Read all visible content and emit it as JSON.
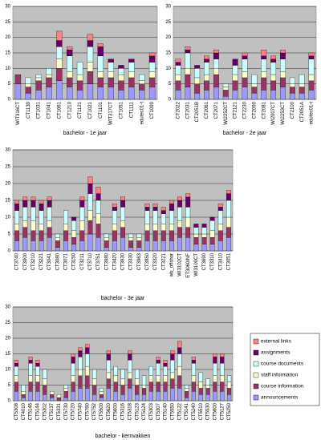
{
  "chart_data": [
    {
      "type": "bar",
      "stacked": true,
      "xlabel": "bachelor - 1e jaar",
      "categories": [
        "WIT316CT",
        "CT1130",
        "CT1031",
        "CT1041",
        "CT1061",
        "CT1210",
        "CT1121",
        "CT1021",
        "CT1101",
        "WIT317CT",
        "CT1051",
        "CT1111",
        "edutec01-t",
        "CT1090"
      ],
      "series": [
        {
          "color": "#9999ff",
          "values": [
            5,
            2,
            3,
            4,
            6,
            4,
            3,
            5,
            4,
            4,
            3,
            4,
            3,
            4
          ]
        },
        {
          "color": "#993366",
          "values": [
            3,
            2,
            3,
            3,
            4,
            3,
            3,
            4,
            3,
            3,
            3,
            3,
            2,
            3
          ]
        },
        {
          "color": "#ffffcc",
          "values": [
            0,
            1,
            1,
            1,
            3,
            2,
            2,
            3,
            2,
            2,
            2,
            2,
            1,
            2
          ]
        },
        {
          "color": "#ccffff",
          "values": [
            0,
            2,
            1,
            2,
            4,
            5,
            4,
            5,
            5,
            3,
            2,
            3,
            2,
            3
          ]
        },
        {
          "color": "#660066",
          "values": [
            0,
            0,
            0,
            0,
            2,
            2,
            0,
            2,
            3,
            1,
            1,
            1,
            0,
            2
          ]
        },
        {
          "color": "#ff8080",
          "values": [
            0,
            0,
            0,
            0,
            3,
            1,
            0,
            2,
            1,
            0,
            0,
            0,
            0,
            1
          ]
        }
      ],
      "ylim": [
        0,
        30
      ],
      "yticks": [
        0,
        5,
        10,
        15,
        20,
        25,
        30
      ],
      "grid": true
    },
    {
      "type": "bar",
      "stacked": true,
      "xlabel": "bachelor - 2e jaar",
      "categories": [
        "CT2022",
        "CT2031",
        "CT2051B",
        "CT2061",
        "CT2071",
        "WI2252CT",
        "CT2121",
        "CT2230",
        "CT2090",
        "CT2081",
        "WI2007CT",
        "WI2253CT",
        "CT2100",
        "CT2051A",
        "edutec01-t"
      ],
      "series": [
        {
          "color": "#9999ff",
          "values": [
            3,
            4,
            2,
            3,
            4,
            1,
            3,
            4,
            2,
            3,
            3,
            4,
            2,
            2,
            3
          ]
        },
        {
          "color": "#993366",
          "values": [
            3,
            4,
            3,
            3,
            4,
            2,
            3,
            3,
            2,
            4,
            3,
            3,
            2,
            2,
            3
          ]
        },
        {
          "color": "#ffffcc",
          "values": [
            2,
            2,
            2,
            2,
            2,
            1,
            2,
            2,
            1,
            2,
            2,
            2,
            1,
            1,
            2
          ]
        },
        {
          "color": "#ccffff",
          "values": [
            3,
            5,
            3,
            4,
            3,
            1,
            3,
            4,
            3,
            4,
            4,
            4,
            2,
            3,
            5
          ]
        },
        {
          "color": "#660066",
          "values": [
            1,
            1,
            1,
            1,
            2,
            0,
            2,
            1,
            0,
            1,
            1,
            2,
            0,
            0,
            1
          ]
        },
        {
          "color": "#ff8080",
          "values": [
            1,
            1,
            0,
            1,
            1,
            0,
            0,
            1,
            0,
            2,
            1,
            1,
            0,
            0,
            1
          ]
        }
      ],
      "ylim": [
        0,
        30
      ],
      "yticks": [
        0,
        5,
        10,
        15,
        20,
        25,
        30
      ],
      "grid": true
    },
    {
      "type": "bar",
      "stacked": true,
      "xlabel": "bachelor - 3e jaar",
      "categories": [
        "CT3740",
        "CT3000",
        "CT3210",
        "CT3221",
        "CT3041",
        "CT3080",
        "CT3071",
        "CT3150",
        "CT3211",
        "CT3710",
        "CT3751",
        "CT3980",
        "CT3420",
        "CT3930",
        "CT3330",
        "CT3963",
        "CT3950",
        "CT3320",
        "CT3221",
        "wb_offshor",
        "WI3102CT",
        "ET3060INF",
        "WI3100CT",
        "CT3690",
        "CT3310",
        "CT3410",
        "CT3051"
      ],
      "series": [
        {
          "color": "#9999ff",
          "values": [
            3,
            4,
            3,
            3,
            4,
            1,
            3,
            2,
            3,
            5,
            4,
            1,
            3,
            4,
            1,
            1,
            3,
            3,
            3,
            3,
            4,
            4,
            2,
            2,
            2,
            3,
            4
          ]
        },
        {
          "color": "#993366",
          "values": [
            3,
            3,
            3,
            3,
            3,
            2,
            3,
            2,
            3,
            4,
            4,
            2,
            3,
            3,
            2,
            2,
            3,
            3,
            3,
            3,
            3,
            3,
            2,
            2,
            2,
            3,
            3
          ]
        },
        {
          "color": "#ffffcc",
          "values": [
            2,
            2,
            3,
            2,
            2,
            1,
            2,
            2,
            3,
            3,
            3,
            1,
            2,
            2,
            1,
            1,
            2,
            2,
            2,
            2,
            2,
            3,
            1,
            1,
            2,
            2,
            3
          ]
        },
        {
          "color": "#ccffff",
          "values": [
            4,
            4,
            4,
            4,
            4,
            1,
            4,
            3,
            4,
            5,
            4,
            1,
            4,
            4,
            1,
            1,
            4,
            4,
            3,
            4,
            4,
            3,
            2,
            2,
            3,
            4,
            5
          ]
        },
        {
          "color": "#660066",
          "values": [
            2,
            2,
            2,
            2,
            2,
            0,
            0,
            1,
            2,
            3,
            2,
            0,
            1,
            2,
            0,
            0,
            1,
            1,
            1,
            2,
            2,
            3,
            1,
            1,
            1,
            1,
            2
          ]
        },
        {
          "color": "#ff8080",
          "values": [
            1,
            1,
            1,
            1,
            1,
            0,
            0,
            0,
            1,
            2,
            2,
            0,
            1,
            1,
            0,
            0,
            1,
            1,
            1,
            1,
            1,
            1,
            0,
            0,
            0,
            1,
            1
          ]
        }
      ],
      "ylim": [
        0,
        30
      ],
      "yticks": [
        0,
        5,
        10,
        15,
        20,
        25,
        30
      ],
      "grid": true
    },
    {
      "type": "bar",
      "stacked": true,
      "xlabel": "bachelor - kernvakken",
      "categories": [
        "CT5308",
        "CT4010",
        "CT5146",
        "CT5144",
        "CT5302",
        "CT5137",
        "CT5331",
        "CT5730",
        "CT5720",
        "CT5740",
        "CT5760",
        "CT5752",
        "CT5500",
        "CT5620",
        "CT5600",
        "CT5316",
        "CT5318",
        "CT5123",
        "CT5124",
        "CT5303",
        "CT5307",
        "CT5140",
        "CT5550",
        "CT5122",
        "CT5141",
        "CT5240",
        "CT5510",
        "CT5530",
        "CT5600",
        "CT5127",
        "CT5250"
      ],
      "series": [
        {
          "name": "announcements",
          "color": "#9999ff",
          "values": [
            3,
            1,
            3,
            3,
            2,
            1,
            0,
            1,
            3,
            4,
            4,
            2,
            1,
            4,
            3,
            2,
            4,
            2,
            2,
            3,
            3,
            3,
            4,
            4,
            1,
            3,
            2,
            2,
            3,
            3,
            2
          ]
        },
        {
          "name": "course information",
          "color": "#993366",
          "values": [
            3,
            1,
            3,
            3,
            3,
            1,
            1,
            2,
            3,
            4,
            4,
            3,
            1,
            3,
            3,
            3,
            3,
            3,
            2,
            3,
            3,
            3,
            3,
            4,
            2,
            3,
            2,
            2,
            3,
            3,
            2
          ]
        },
        {
          "name": "staff information",
          "color": "#ffffcc",
          "values": [
            2,
            1,
            2,
            2,
            2,
            1,
            1,
            1,
            2,
            2,
            3,
            2,
            1,
            2,
            2,
            2,
            2,
            2,
            1,
            2,
            2,
            2,
            2,
            3,
            1,
            2,
            2,
            1,
            2,
            2,
            2
          ]
        },
        {
          "name": "course documents",
          "color": "#ccffff",
          "values": [
            3,
            2,
            4,
            3,
            3,
            0,
            0,
            1,
            4,
            4,
            4,
            3,
            1,
            4,
            3,
            3,
            4,
            3,
            3,
            3,
            4,
            3,
            4,
            4,
            1,
            4,
            3,
            2,
            4,
            4,
            2
          ]
        },
        {
          "name": "assignments",
          "color": "#660066",
          "values": [
            1,
            0,
            1,
            1,
            0,
            0,
            0,
            0,
            2,
            2,
            2,
            0,
            0,
            2,
            0,
            0,
            2,
            0,
            0,
            0,
            1,
            1,
            2,
            2,
            0,
            1,
            0,
            0,
            2,
            2,
            0
          ]
        },
        {
          "name": "external links",
          "color": "#ff8080",
          "values": [
            1,
            0,
            1,
            1,
            0,
            0,
            0,
            0,
            1,
            1,
            1,
            0,
            0,
            1,
            0,
            0,
            1,
            0,
            0,
            0,
            1,
            1,
            1,
            2,
            0,
            1,
            0,
            0,
            1,
            1,
            0
          ]
        }
      ],
      "ylim": [
        0,
        30
      ],
      "yticks": [
        0,
        5,
        10,
        15,
        20,
        25,
        30
      ],
      "grid": true,
      "legend": "right"
    }
  ]
}
